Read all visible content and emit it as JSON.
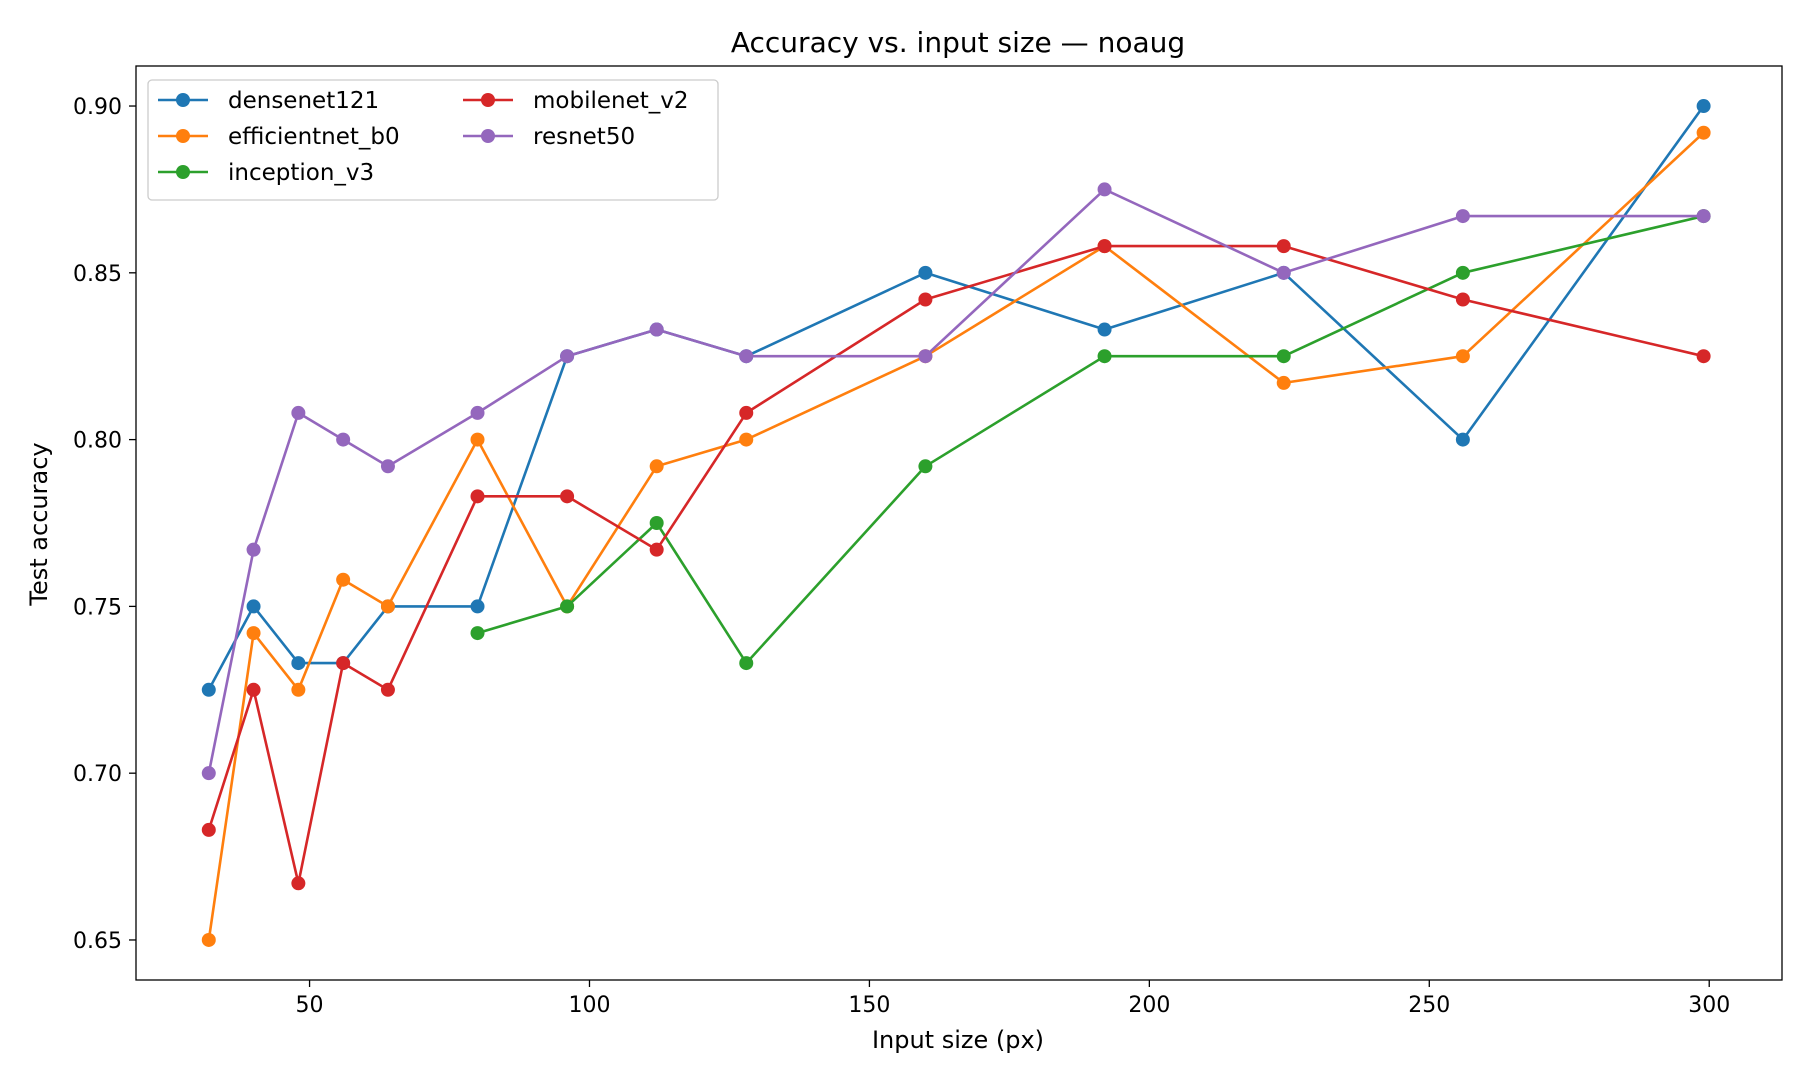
{
  "chart_data": {
    "type": "line",
    "title": "Accuracy vs. input size — noaug",
    "xlabel": "Input size (px)",
    "ylabel": "Test accuracy",
    "xlim": [
      19,
      313
    ],
    "ylim": [
      0.638,
      0.912
    ],
    "xticks": [
      50,
      100,
      150,
      200,
      250,
      300
    ],
    "xtick_labels": [
      "50",
      "100",
      "150",
      "200",
      "250",
      "300"
    ],
    "yticks": [
      0.65,
      0.7,
      0.75,
      0.8,
      0.85,
      0.9
    ],
    "ytick_labels": [
      "0.65",
      "0.70",
      "0.75",
      "0.80",
      "0.85",
      "0.90"
    ],
    "grid": false,
    "legend_position": "top-left",
    "series": [
      {
        "name": "densenet121",
        "color": "#1f77b4",
        "x": [
          32,
          40,
          48,
          56,
          64,
          80,
          96,
          112,
          128,
          160,
          192,
          224,
          256,
          299
        ],
        "y": [
          0.725,
          0.75,
          0.733,
          0.733,
          0.75,
          0.75,
          0.825,
          0.833,
          0.825,
          0.85,
          0.833,
          0.85,
          0.8,
          0.9
        ]
      },
      {
        "name": "efficientnet_b0",
        "color": "#ff7f0e",
        "x": [
          32,
          40,
          48,
          56,
          64,
          80,
          96,
          112,
          128,
          160,
          192,
          224,
          256,
          299
        ],
        "y": [
          0.65,
          0.742,
          0.725,
          0.758,
          0.75,
          0.8,
          0.75,
          0.792,
          0.8,
          0.825,
          0.858,
          0.817,
          0.825,
          0.892
        ]
      },
      {
        "name": "inception_v3",
        "color": "#2ca02c",
        "x": [
          80,
          96,
          112,
          128,
          160,
          192,
          224,
          256,
          299
        ],
        "y": [
          0.742,
          0.75,
          0.775,
          0.733,
          0.792,
          0.825,
          0.825,
          0.85,
          0.867
        ]
      },
      {
        "name": "mobilenet_v2",
        "color": "#d62728",
        "x": [
          32,
          40,
          48,
          56,
          64,
          80,
          96,
          112,
          128,
          160,
          192,
          224,
          256,
          299
        ],
        "y": [
          0.683,
          0.725,
          0.667,
          0.733,
          0.725,
          0.783,
          0.783,
          0.767,
          0.808,
          0.842,
          0.858,
          0.858,
          0.842,
          0.825
        ]
      },
      {
        "name": "resnet50",
        "color": "#9467bd",
        "x": [
          32,
          40,
          48,
          56,
          64,
          80,
          96,
          112,
          128,
          160,
          192,
          224,
          256,
          299
        ],
        "y": [
          0.7,
          0.767,
          0.808,
          0.8,
          0.792,
          0.808,
          0.825,
          0.833,
          0.825,
          0.825,
          0.875,
          0.85,
          0.867,
          0.867
        ]
      }
    ]
  }
}
